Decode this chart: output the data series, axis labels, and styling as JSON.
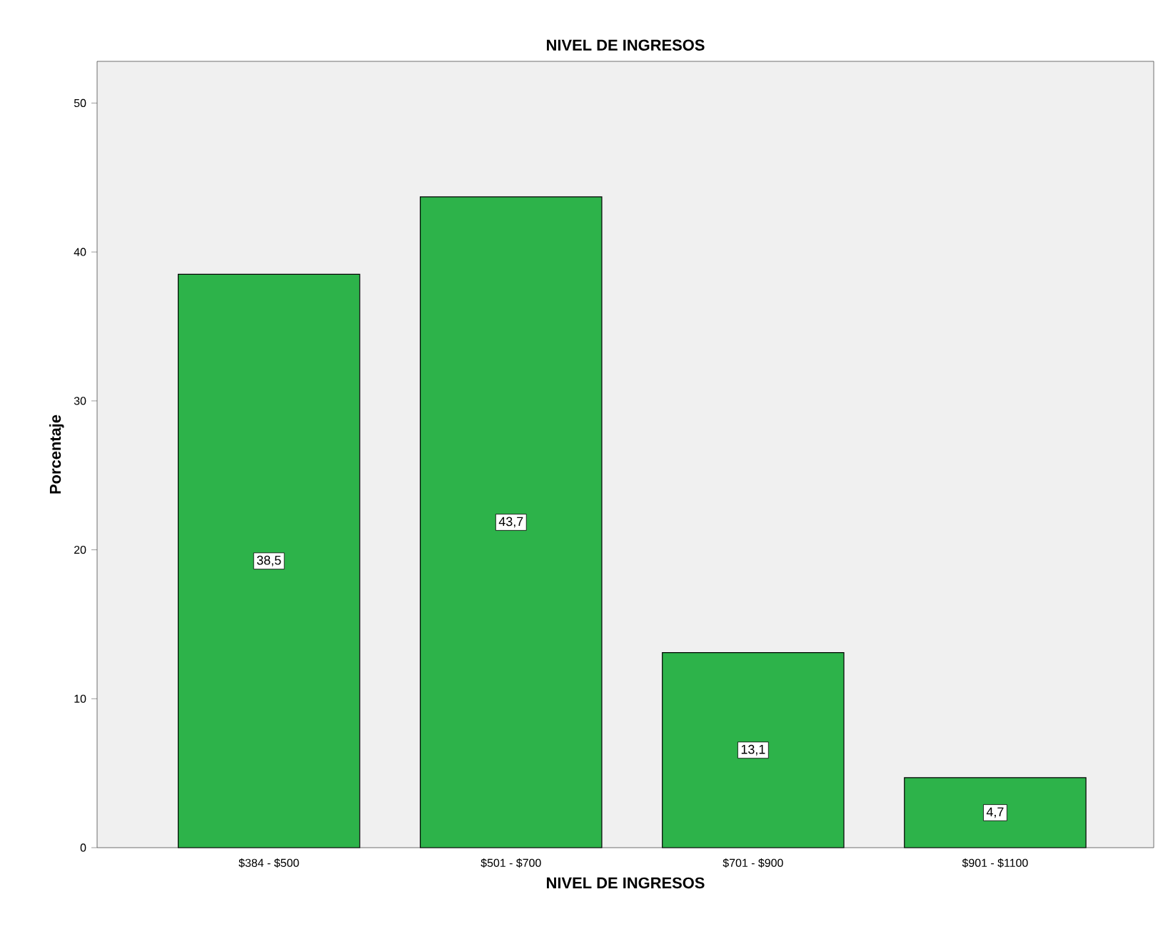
{
  "chart_data": {
    "type": "bar",
    "title": "NIVEL DE INGRESOS",
    "xlabel": "NIVEL DE INGRESOS",
    "ylabel": "Porcentaje",
    "categories": [
      "$384 - $500",
      "$501 - $700",
      "$701 - $900",
      "$901 - $1100"
    ],
    "values": [
      38.5,
      43.7,
      13.1,
      4.7
    ],
    "value_labels": [
      "38,5",
      "43,7",
      "13,1",
      "4,7"
    ],
    "color": "#2db34a",
    "ylim": [
      0,
      52.8
    ],
    "yticks": [
      0,
      10,
      20,
      30,
      40,
      50
    ],
    "grid": false
  }
}
